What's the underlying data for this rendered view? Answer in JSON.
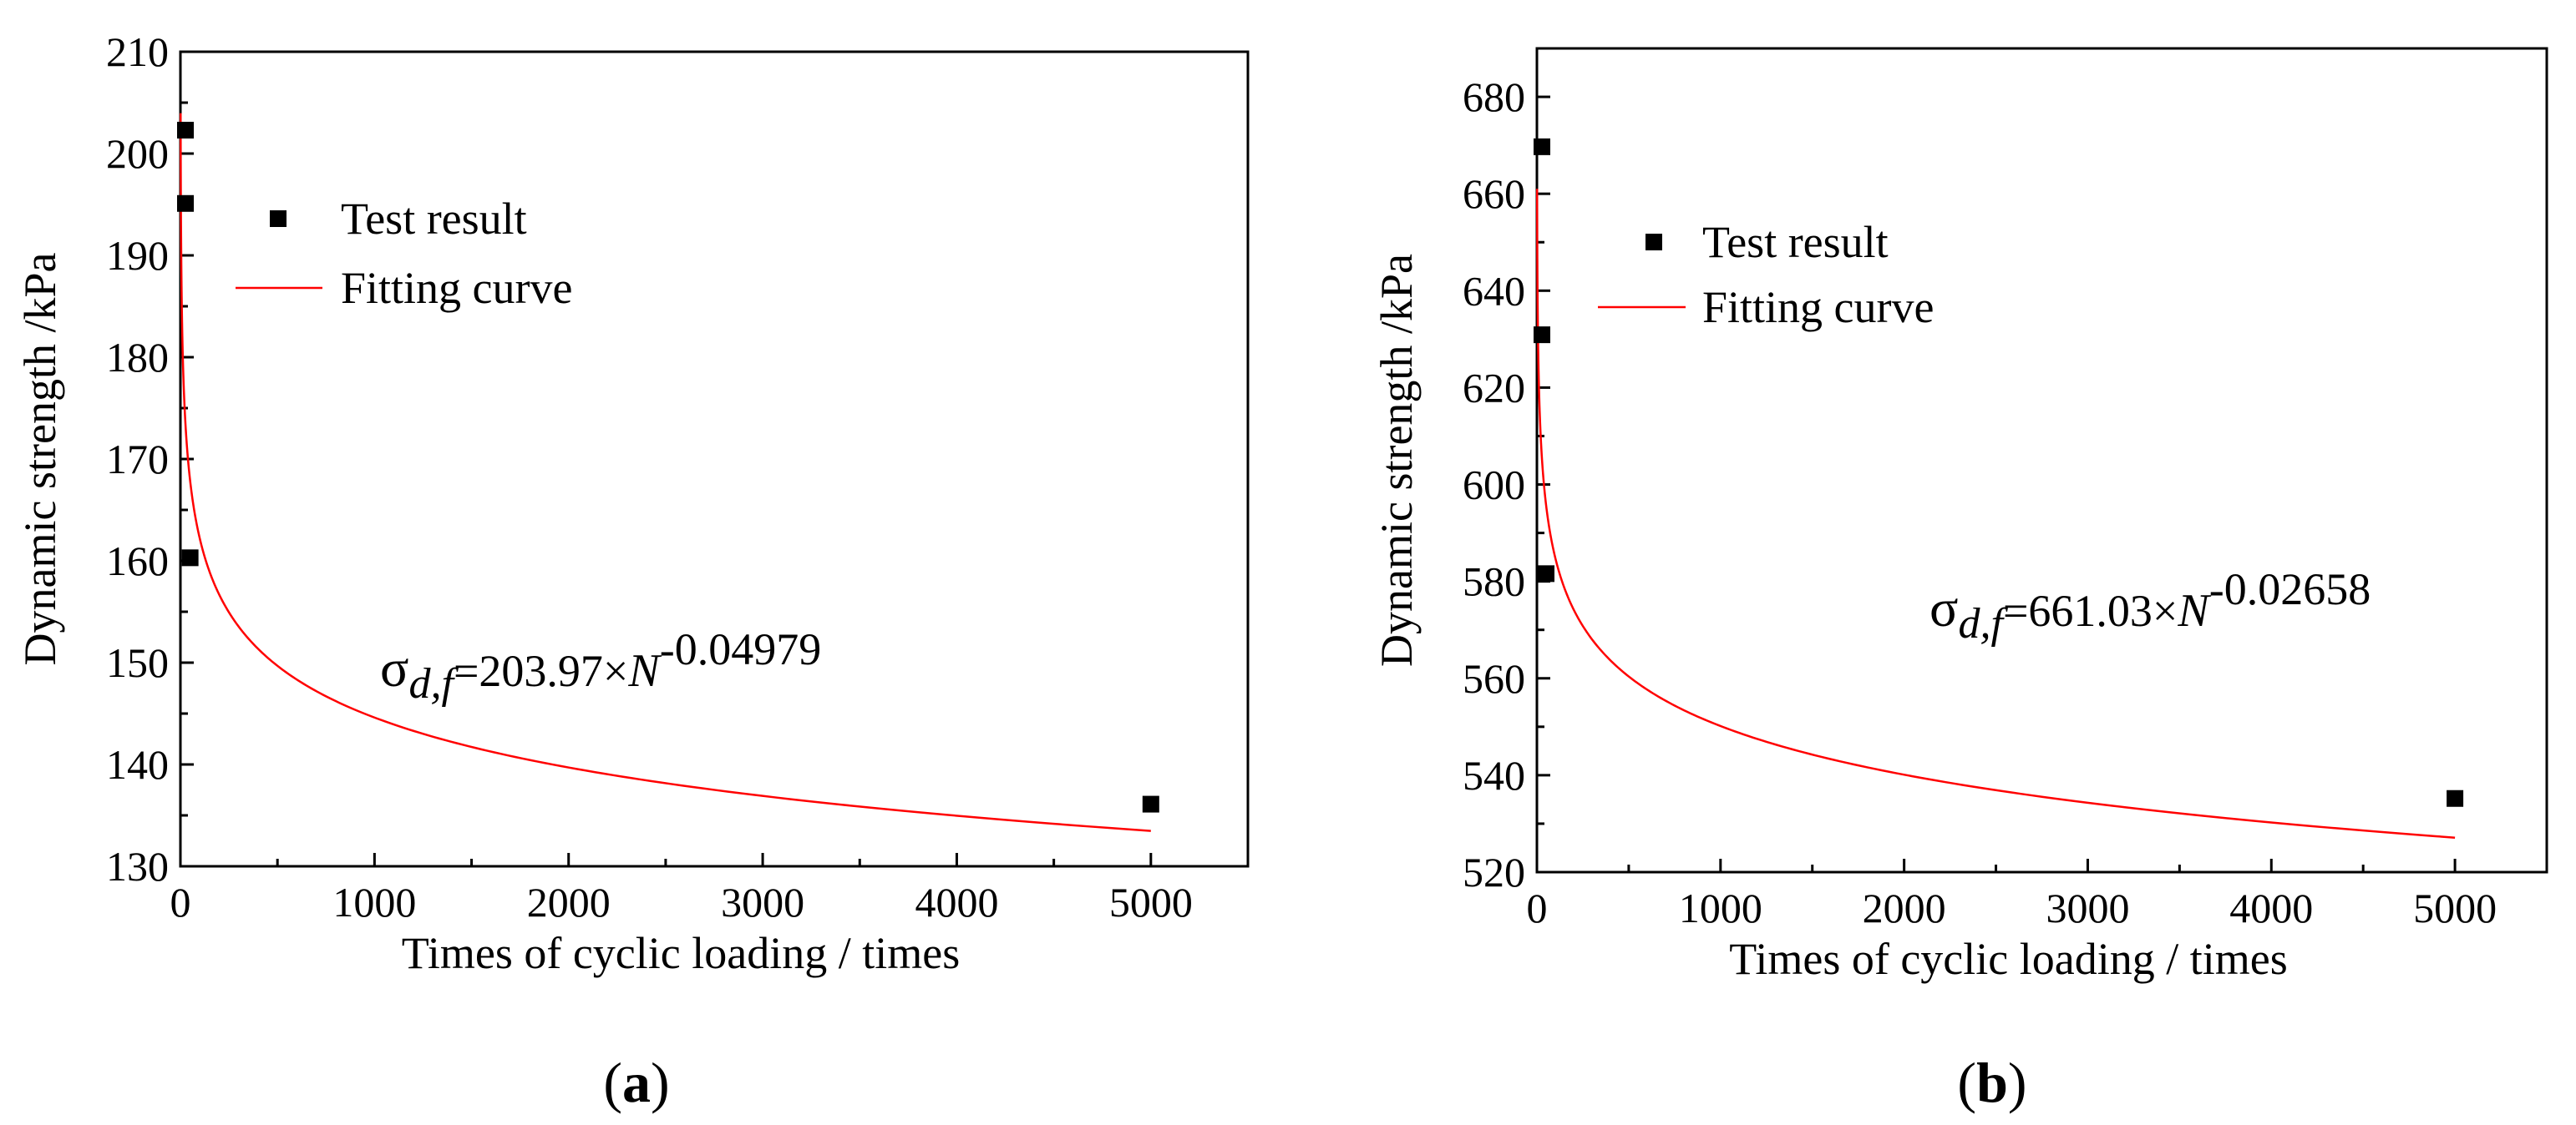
{
  "chart_data": [
    {
      "type": "scatter",
      "panel_label": "a",
      "xlabel": "Times of cyclic loading / times",
      "ylabel": "Dynamic strength /kPa",
      "xlim": [
        0,
        5500
      ],
      "ylim": [
        130,
        210
      ],
      "xticks": [
        0,
        1000,
        2000,
        3000,
        4000,
        5000
      ],
      "yticks": [
        130,
        140,
        150,
        160,
        170,
        180,
        190,
        200,
        210
      ],
      "legend": {
        "position": "top-left",
        "entries": [
          "Test result",
          "Fitting curve"
        ]
      },
      "series": [
        {
          "name": "Test result",
          "kind": "scatter",
          "color": "#000000",
          "x": [
            1,
            10,
            50,
            5000
          ],
          "y": [
            202.3,
            195.1,
            160.3,
            136.1
          ]
        },
        {
          "name": "Fitting curve",
          "kind": "line",
          "color": "#ff0000",
          "model": {
            "a": 203.97,
            "b": -0.04979
          },
          "x_range": [
            1,
            5000
          ]
        }
      ],
      "equation": {
        "sigma": "σ",
        "sub": "d,f",
        "eq": "=203.97×",
        "n": "N",
        "exp": "-0.04979"
      }
    },
    {
      "type": "scatter",
      "panel_label": "b",
      "xlabel": "Times of cyclic loading / times",
      "ylabel": "Dynamic strength /kPa",
      "xlim": [
        0,
        5500
      ],
      "ylim": [
        520,
        690
      ],
      "xticks": [
        0,
        1000,
        2000,
        3000,
        4000,
        5000
      ],
      "yticks": [
        520,
        540,
        560,
        580,
        600,
        620,
        640,
        660,
        680
      ],
      "legend": {
        "position": "top-left",
        "entries": [
          "Test result",
          "Fitting curve"
        ]
      },
      "series": [
        {
          "name": "Test result",
          "kind": "scatter",
          "color": "#000000",
          "x": [
            1,
            10,
            50,
            5000
          ],
          "y": [
            669.7,
            630.9,
            581.6,
            535.2
          ]
        },
        {
          "name": "Fitting curve",
          "kind": "line",
          "color": "#ff0000",
          "model": {
            "a": 661.03,
            "b": -0.02658
          },
          "x_range": [
            1,
            5000
          ]
        }
      ],
      "equation": {
        "sigma": "σ",
        "sub": "d,f",
        "eq": "=661.03×",
        "n": "N",
        "exp": "-0.02658"
      }
    }
  ]
}
